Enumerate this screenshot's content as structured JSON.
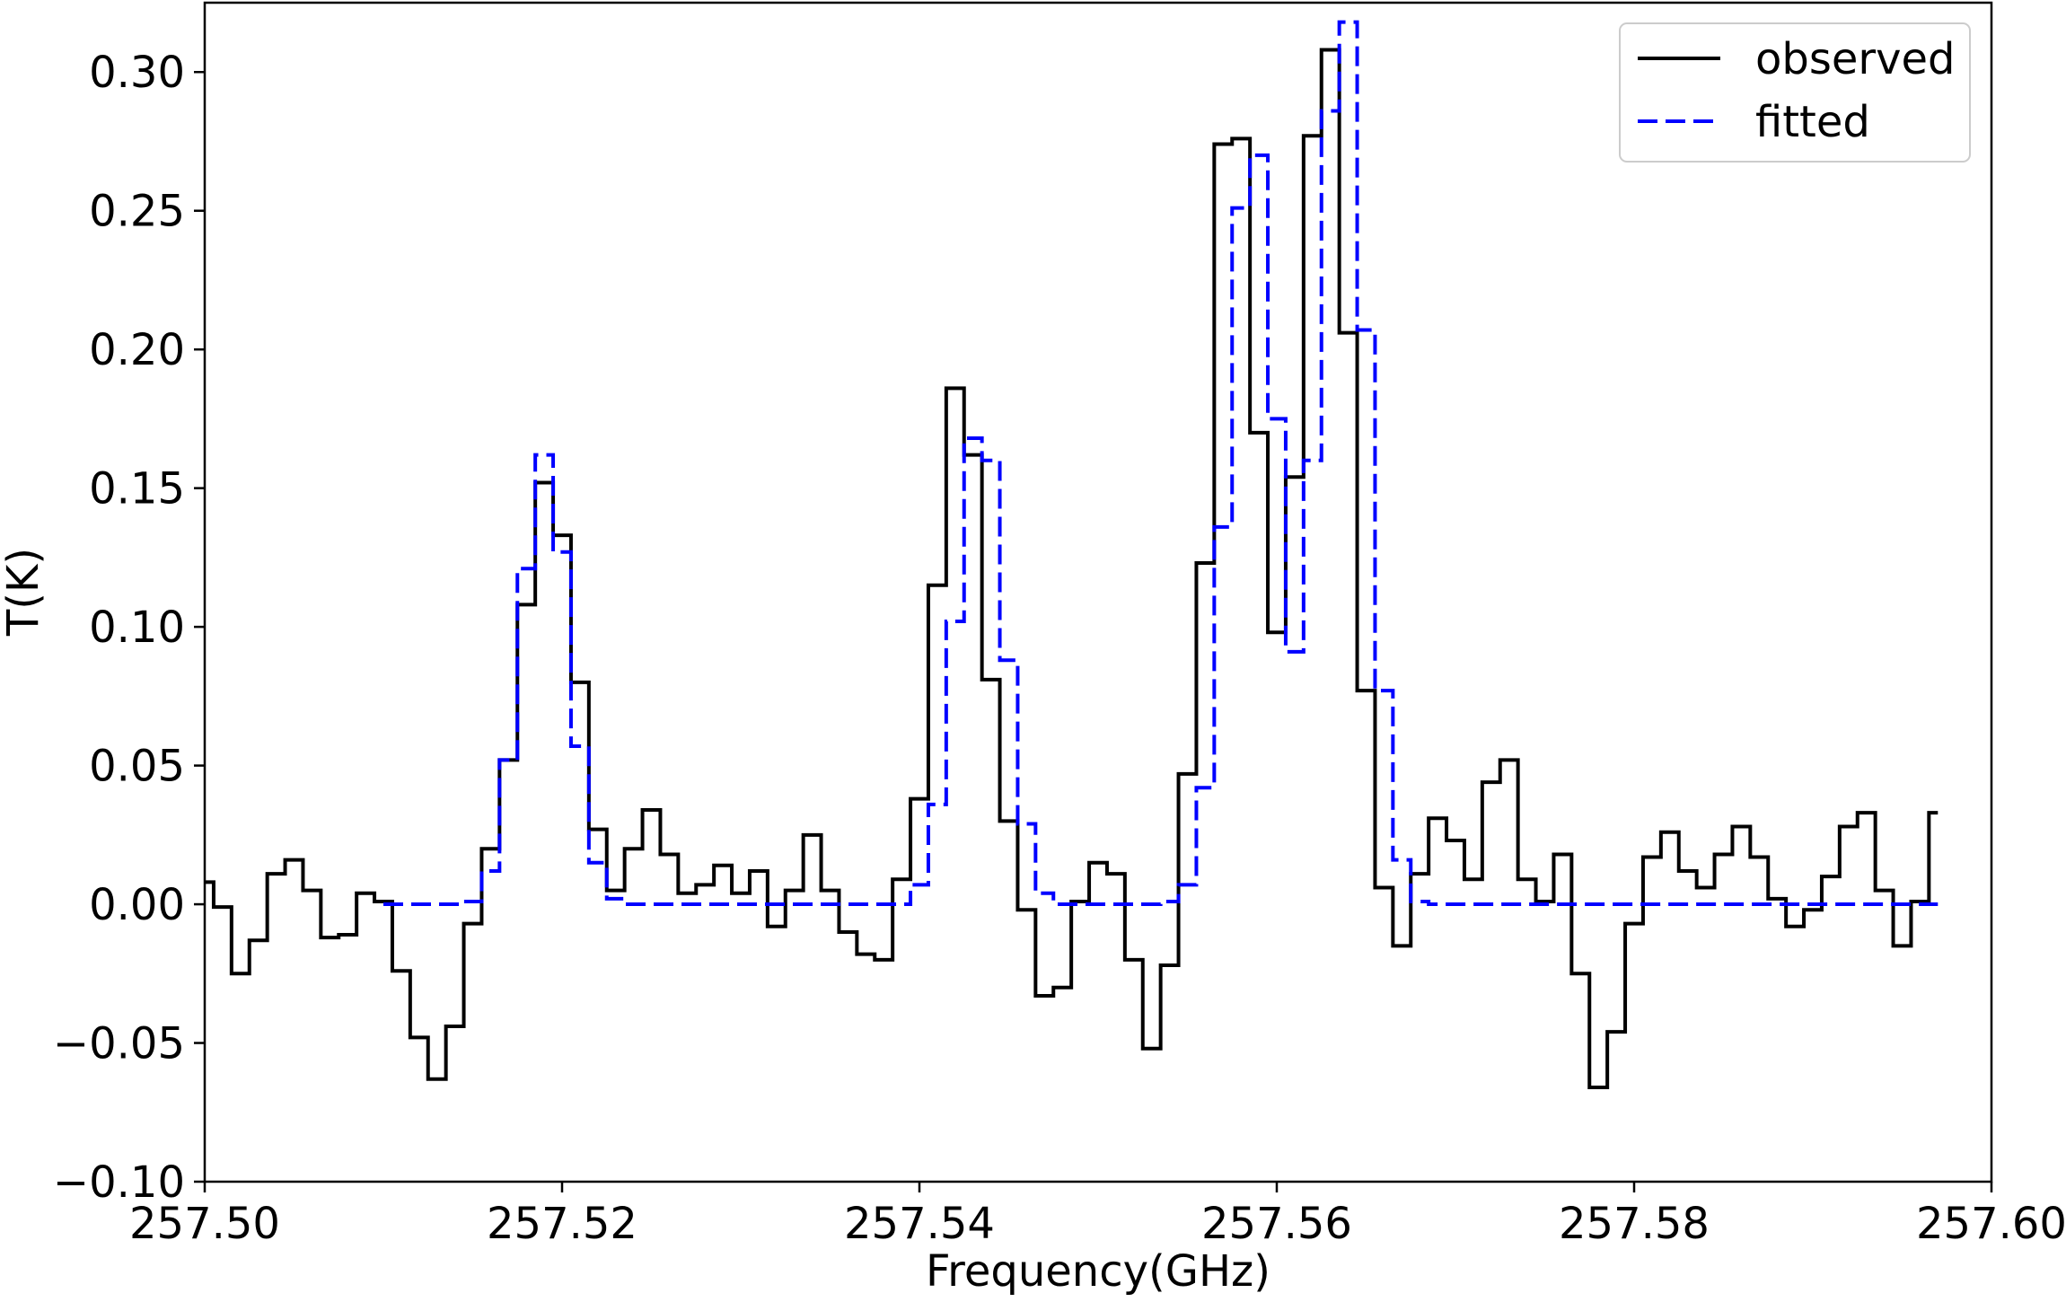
{
  "chart_data": {
    "type": "line",
    "title": "",
    "xlabel": "Frequency(GHz)",
    "ylabel": "T(K)",
    "xlim": [
      257.5,
      257.6
    ],
    "ylim": [
      -0.1,
      0.325
    ],
    "xticks": [
      257.5,
      257.52,
      257.54,
      257.56,
      257.58,
      257.6
    ],
    "xtick_labels": [
      "257.50",
      "257.52",
      "257.54",
      "257.56",
      "257.58",
      "257.60"
    ],
    "yticks": [
      -0.1,
      -0.05,
      0.0,
      0.05,
      0.1,
      0.15,
      0.2,
      0.25,
      0.3
    ],
    "ytick_labels": [
      "−0.10",
      "−0.05",
      "0.00",
      "0.05",
      "0.10",
      "0.15",
      "0.20",
      "0.25",
      "0.30"
    ],
    "grid": false,
    "legend_position": "top-right",
    "drawstyle": "steps-mid",
    "series": [
      {
        "name": "observed",
        "color": "#000000",
        "dash": "solid",
        "x": [
          257.5,
          257.501,
          257.502,
          257.503,
          257.504,
          257.505,
          257.506,
          257.507,
          257.508,
          257.509,
          257.51,
          257.511,
          257.512,
          257.513,
          257.514,
          257.515,
          257.516,
          257.517,
          257.518,
          257.519,
          257.52,
          257.521,
          257.522,
          257.523,
          257.524,
          257.525,
          257.526,
          257.527,
          257.528,
          257.529,
          257.53,
          257.531,
          257.532,
          257.533,
          257.534,
          257.535,
          257.536,
          257.537,
          257.538,
          257.539,
          257.54,
          257.541,
          257.542,
          257.543,
          257.544,
          257.545,
          257.546,
          257.547,
          257.548,
          257.549,
          257.55,
          257.551,
          257.552,
          257.553,
          257.554,
          257.555,
          257.556,
          257.557,
          257.558,
          257.559,
          257.56,
          257.561,
          257.562,
          257.563,
          257.564,
          257.565,
          257.566,
          257.567,
          257.568,
          257.569,
          257.57,
          257.571,
          257.572,
          257.573,
          257.574,
          257.575,
          257.576,
          257.577,
          257.578,
          257.579,
          257.58,
          257.581,
          257.582,
          257.583,
          257.584,
          257.585,
          257.586,
          257.587,
          257.588,
          257.589,
          257.59,
          257.591,
          257.592,
          257.593,
          257.594,
          257.595,
          257.596,
          257.597
        ],
        "y": [
          0.008,
          -0.001,
          -0.025,
          -0.013,
          0.011,
          0.016,
          0.005,
          -0.012,
          -0.011,
          0.004,
          0.001,
          -0.024,
          -0.048,
          -0.063,
          -0.044,
          -0.007,
          0.02,
          0.052,
          0.108,
          0.152,
          0.133,
          0.08,
          0.027,
          0.005,
          0.02,
          0.034,
          0.018,
          0.004,
          0.007,
          0.014,
          0.004,
          0.012,
          -0.008,
          0.005,
          0.025,
          0.005,
          -0.01,
          -0.018,
          -0.02,
          0.009,
          0.038,
          0.115,
          0.186,
          0.162,
          0.081,
          0.03,
          -0.002,
          -0.033,
          -0.03,
          0.001,
          0.015,
          0.011,
          -0.02,
          -0.052,
          -0.022,
          0.047,
          0.123,
          0.274,
          0.276,
          0.17,
          0.098,
          0.154,
          0.277,
          0.308,
          0.206,
          0.077,
          0.006,
          -0.015,
          0.011,
          0.031,
          0.023,
          0.009,
          0.044,
          0.052,
          0.009,
          0.001,
          0.018,
          -0.025,
          -0.066,
          -0.046,
          -0.007,
          0.017,
          0.026,
          0.012,
          0.006,
          0.018,
          0.028,
          0.017,
          0.002,
          -0.008,
          -0.002,
          0.01,
          0.028,
          0.033,
          0.005,
          -0.015,
          0.001,
          0.033
        ]
      },
      {
        "name": "fitted",
        "color": "#0000ff",
        "dash": "dashed",
        "x": [
          257.51,
          257.511,
          257.512,
          257.513,
          257.514,
          257.515,
          257.516,
          257.517,
          257.518,
          257.519,
          257.52,
          257.521,
          257.522,
          257.523,
          257.524,
          257.525,
          257.526,
          257.527,
          257.528,
          257.529,
          257.53,
          257.531,
          257.532,
          257.533,
          257.534,
          257.535,
          257.536,
          257.537,
          257.538,
          257.539,
          257.54,
          257.541,
          257.542,
          257.543,
          257.544,
          257.545,
          257.546,
          257.547,
          257.548,
          257.549,
          257.55,
          257.551,
          257.552,
          257.553,
          257.554,
          257.555,
          257.556,
          257.557,
          257.558,
          257.559,
          257.56,
          257.561,
          257.562,
          257.563,
          257.564,
          257.565,
          257.566,
          257.567,
          257.568,
          257.569,
          257.57,
          257.571,
          257.572,
          257.573,
          257.574,
          257.575,
          257.576,
          257.577,
          257.578,
          257.579,
          257.58,
          257.581,
          257.582,
          257.583,
          257.584,
          257.585,
          257.586,
          257.587,
          257.588,
          257.589,
          257.59,
          257.591,
          257.592,
          257.593,
          257.594,
          257.595,
          257.596,
          257.597
        ],
        "y": [
          0.0,
          0.0,
          0.0,
          0.0,
          0.0,
          0.001,
          0.012,
          0.052,
          0.121,
          0.162,
          0.127,
          0.057,
          0.015,
          0.002,
          0.0,
          0.0,
          0.0,
          0.0,
          0.0,
          0.0,
          0.0,
          0.0,
          0.0,
          0.0,
          0.0,
          0.0,
          0.0,
          0.0,
          0.0,
          0.0,
          0.007,
          0.036,
          0.102,
          0.168,
          0.16,
          0.088,
          0.029,
          0.004,
          0.0,
          0.0,
          0.0,
          0.0,
          0.0,
          0.0,
          0.001,
          0.007,
          0.042,
          0.136,
          0.251,
          0.27,
          0.175,
          0.091,
          0.16,
          0.286,
          0.318,
          0.207,
          0.077,
          0.016,
          0.001,
          0.0,
          0.0,
          0.0,
          0.0,
          0.0,
          0.0,
          0.0,
          0.0,
          0.0,
          0.0,
          0.0,
          0.0,
          0.0,
          0.0,
          0.0,
          0.0,
          0.0,
          0.0,
          0.0,
          0.0,
          0.0,
          0.0,
          0.0,
          0.0,
          0.0,
          0.0,
          0.0,
          0.0,
          0.0
        ]
      }
    ]
  }
}
